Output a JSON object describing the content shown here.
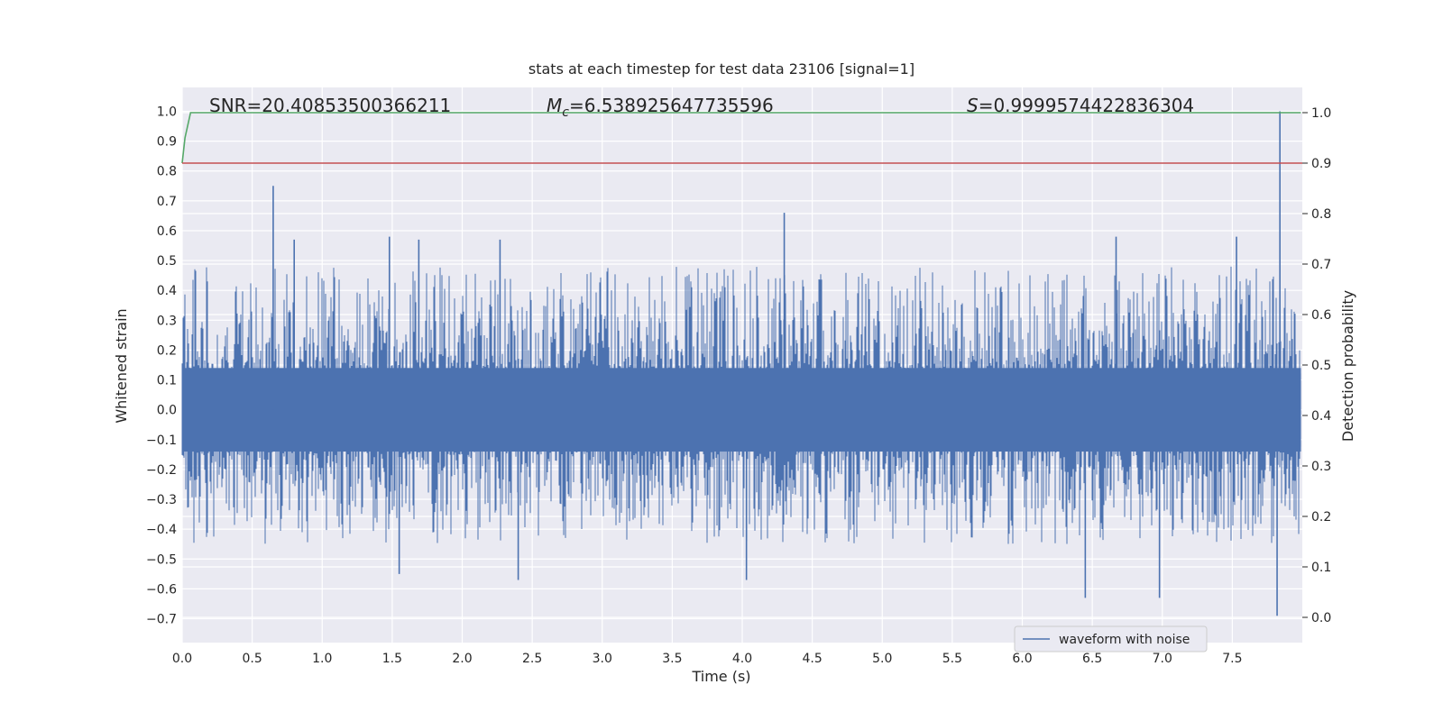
{
  "colors": {
    "background": "#eaeaf2",
    "grid": "#ffffff",
    "waveform": "#4c72b0",
    "probability": "#55a868",
    "threshold": "#c44e52"
  },
  "chart_data": {
    "type": "line",
    "title": "stats at each timestep for test data 23106 [signal=1]",
    "xlabel": "Time (s)",
    "ylabel": "Whitened strain",
    "ylabel_right": "Detection probability",
    "xlim": [
      0.0,
      8.0
    ],
    "ylim": [
      -0.78,
      1.08
    ],
    "ylim_right": [
      -0.05,
      1.05
    ],
    "x_ticks": [
      "0.0",
      "0.5",
      "1.0",
      "1.5",
      "2.0",
      "2.5",
      "3.0",
      "3.5",
      "4.0",
      "4.5",
      "5.0",
      "5.5",
      "6.0",
      "6.5",
      "7.0",
      "7.5"
    ],
    "y_ticks": [
      "1.0",
      "0.9",
      "0.8",
      "0.7",
      "0.6",
      "0.5",
      "0.4",
      "0.3",
      "0.2",
      "0.1",
      "0.0",
      "−0.1",
      "−0.2",
      "−0.3",
      "−0.4",
      "−0.5",
      "−0.6",
      "−0.7"
    ],
    "y_ticks_right": [
      "1.0",
      "0.9",
      "0.8",
      "0.7",
      "0.6",
      "0.5",
      "0.4",
      "0.3",
      "0.2",
      "0.1",
      "0.0"
    ],
    "annotations": {
      "snr_label": "SNR=20.40853500366211",
      "mc_prefix": "M",
      "mc_sub": "c",
      "mc_value": "=6.538925647735596",
      "s_prefix": "S",
      "s_value": "=0.9999574422836304"
    },
    "legend": {
      "label": "waveform with noise",
      "location": "lower-right"
    },
    "series": [
      {
        "name": "waveform with noise",
        "axis": "left",
        "style": "dense-noise",
        "x_range": [
          0.0,
          7.99
        ],
        "core_range": [
          -0.14,
          0.14
        ],
        "typical_max": 0.48,
        "typical_min": -0.45,
        "peaks": [
          {
            "x": 0.65,
            "y": 0.75
          },
          {
            "x": 0.8,
            "y": 0.57
          },
          {
            "x": 1.48,
            "y": 0.58
          },
          {
            "x": 1.69,
            "y": 0.57
          },
          {
            "x": 2.27,
            "y": 0.57
          },
          {
            "x": 4.3,
            "y": 0.66
          },
          {
            "x": 6.67,
            "y": 0.58
          },
          {
            "x": 7.53,
            "y": 0.58
          },
          {
            "x": 7.84,
            "y": 1.0
          },
          {
            "x": 1.55,
            "y": -0.55
          },
          {
            "x": 2.4,
            "y": -0.57
          },
          {
            "x": 4.03,
            "y": -0.57
          },
          {
            "x": 6.45,
            "y": -0.63
          },
          {
            "x": 6.98,
            "y": -0.63
          },
          {
            "x": 7.82,
            "y": -0.69
          }
        ]
      },
      {
        "name": "detection probability",
        "axis": "right",
        "x": [
          0.0,
          0.02,
          0.06,
          0.1,
          0.2,
          1.0,
          2.0,
          3.0,
          4.0,
          5.0,
          6.0,
          7.0,
          7.99
        ],
        "y": [
          0.9,
          0.95,
          1.0,
          1.0,
          1.0,
          1.0,
          1.0,
          1.0,
          1.0,
          1.0,
          1.0,
          1.0,
          1.0
        ]
      },
      {
        "name": "threshold",
        "axis": "right",
        "x": [
          0.0,
          8.0
        ],
        "y": [
          0.9,
          0.9
        ]
      }
    ]
  }
}
